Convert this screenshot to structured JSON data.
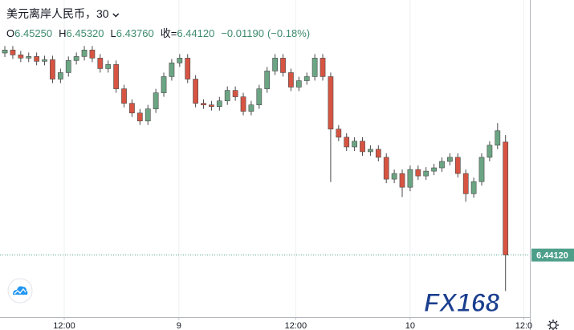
{
  "chart_data": {
    "type": "candlestick",
    "title": "美元离岸人民币，30",
    "ohlc_labels": [
      {
        "key": "O",
        "text": "6.45250"
      },
      {
        "key": "H",
        "text": "6.45320"
      },
      {
        "key": "L",
        "text": "6.43760"
      },
      {
        "key": "收=",
        "text": "6.44120"
      }
    ],
    "change": "−0.01190",
    "change_pct": "(−0.18%)",
    "last_price_label": "6.44120",
    "watermark": "FX168",
    "up_color": "#6ba583",
    "down_color": "#d75442",
    "wick_color": "#4a4a4a",
    "price_line_color": "#4e9f8a",
    "grid": true,
    "xlim": [
      -0.61,
      66.06
    ],
    "ylim": [
      6.43499,
      6.4667
    ],
    "xticks": [
      {
        "value": 7.47,
        "label": "12:00"
      },
      {
        "value": 21.9,
        "label": "9"
      },
      {
        "value": 36.6,
        "label": "12:00"
      },
      {
        "value": 51.0,
        "label": "10"
      },
      {
        "value": 65.3,
        "label": "12:0"
      }
    ],
    "open": [
      6.4614,
      6.4617,
      6.46121,
      6.46089,
      6.46105,
      6.46057,
      6.46073,
      6.45879,
      6.45944,
      6.46065,
      6.46105,
      6.4617,
      6.46089,
      6.45984,
      6.46025,
      6.45782,
      6.45637,
      6.4554,
      6.4546,
      6.45581,
      6.45742,
      6.45904,
      6.46041,
      6.46089,
      6.45879,
      6.45637,
      6.45621,
      6.45605,
      6.45661,
      6.45766,
      6.45702,
      6.45557,
      6.45621,
      6.45782,
      6.4596,
      6.46089,
      6.45944,
      6.45799,
      6.45863,
      6.45904,
      6.46089,
      6.45904,
      6.45379,
      6.45298,
      6.45201,
      6.45258,
      6.45153,
      6.45177,
      6.45097,
      6.44879,
      6.44935,
      6.44798,
      6.44975,
      6.44911,
      6.44959,
      6.44992,
      6.45056,
      6.45097,
      6.44935,
      6.44733,
      6.44854,
      6.45097,
      6.45218,
      6.4525
    ],
    "high": [
      6.4621,
      6.4621,
      6.46161,
      6.46145,
      6.46145,
      6.46113,
      6.46113,
      6.45984,
      6.46105,
      6.46145,
      6.4621,
      6.4621,
      6.46129,
      6.46065,
      6.46065,
      6.45822,
      6.45677,
      6.4558,
      6.45621,
      6.45782,
      6.45944,
      6.46081,
      6.46129,
      6.46129,
      6.45919,
      6.45677,
      6.45661,
      6.45701,
      6.45806,
      6.45806,
      6.45742,
      6.45661,
      6.45822,
      6.46,
      6.46129,
      6.46129,
      6.45984,
      6.45903,
      6.45944,
      6.46129,
      6.46129,
      6.45944,
      6.45419,
      6.45338,
      6.45298,
      6.45298,
      6.45217,
      6.45217,
      6.45137,
      6.44975,
      6.44975,
      6.45015,
      6.45015,
      6.44999,
      6.45032,
      6.45096,
      6.45137,
      6.45137,
      6.44975,
      6.44894,
      6.45137,
      6.45258,
      6.4544,
      6.4532
    ],
    "low": [
      6.461,
      6.46081,
      6.46049,
      6.46049,
      6.46017,
      6.46017,
      6.45839,
      6.45839,
      6.45904,
      6.46025,
      6.46065,
      6.46049,
      6.45944,
      6.45944,
      6.45742,
      6.45597,
      6.455,
      6.4542,
      6.4542,
      6.45541,
      6.45702,
      6.45864,
      6.46001,
      6.45839,
      6.45597,
      6.45581,
      6.45565,
      6.45565,
      6.45621,
      6.45662,
      6.45517,
      6.45517,
      6.45581,
      6.45742,
      6.4592,
      6.45904,
      6.45759,
      6.45759,
      6.45823,
      6.45864,
      6.45864,
      6.4485,
      6.45258,
      6.45161,
      6.45161,
      6.45113,
      6.45113,
      6.45057,
      6.44839,
      6.44839,
      6.447,
      6.44758,
      6.44871,
      6.44871,
      6.44919,
      6.44952,
      6.45016,
      6.44895,
      6.44653,
      6.44693,
      6.44814,
      6.45057,
      6.45178,
      6.4376
    ],
    "close": [
      6.4617,
      6.46121,
      6.46089,
      6.46105,
      6.46057,
      6.46073,
      6.45879,
      6.45944,
      6.46065,
      6.46105,
      6.4617,
      6.46089,
      6.45984,
      6.46025,
      6.45782,
      6.45637,
      6.4554,
      6.4546,
      6.45581,
      6.45742,
      6.45904,
      6.46041,
      6.46089,
      6.45879,
      6.45637,
      6.45621,
      6.45605,
      6.45661,
      6.45766,
      6.45702,
      6.45557,
      6.45621,
      6.45782,
      6.4596,
      6.46089,
      6.45944,
      6.45799,
      6.45863,
      6.45904,
      6.46089,
      6.45904,
      6.45379,
      6.45298,
      6.45201,
      6.45258,
      6.45153,
      6.45177,
      6.45097,
      6.44879,
      6.44935,
      6.44798,
      6.44975,
      6.44911,
      6.44959,
      6.44992,
      6.45056,
      6.45097,
      6.44935,
      6.44733,
      6.44854,
      6.45097,
      6.45218,
      6.45363,
      6.4412
    ]
  }
}
